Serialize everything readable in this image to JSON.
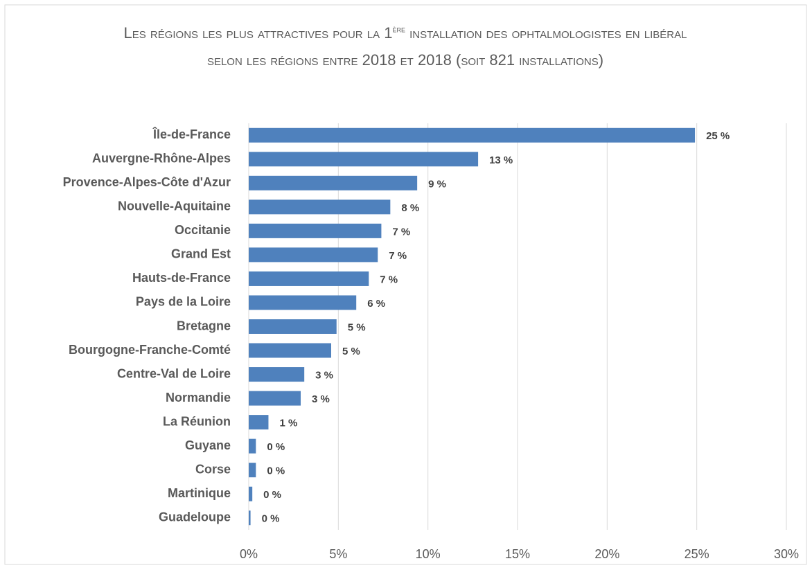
{
  "chart_data": {
    "type": "hbar",
    "title": [
      "Les régions les plus attractives pour la 1",
      "ère",
      " installation des ophtalmologistes en libéral selon les régions entre 2018 et 2018 (soit 821 installations)"
    ],
    "categories": [
      "Île-de-France",
      "Auvergne-Rhône-Alpes",
      "Provence-Alpes-Côte d'Azur",
      "Nouvelle-Aquitaine",
      "Occitanie",
      "Grand Est",
      "Hauts-de-France",
      "Pays de la Loire",
      "Bretagne",
      "Bourgogne-Franche-Comté",
      "Centre-Val de Loire",
      "Normandie",
      "La Réunion",
      "Guyane",
      "Corse",
      "Martinique",
      "Guadeloupe"
    ],
    "values": [
      24.9,
      12.8,
      9.4,
      7.9,
      7.4,
      7.2,
      6.7,
      6.0,
      4.9,
      4.6,
      3.1,
      2.9,
      1.1,
      0.4,
      0.4,
      0.2,
      0.1
    ],
    "value_labels": [
      "25 %",
      "13 %",
      "9 %",
      "8 %",
      "7 %",
      "7 %",
      "7 %",
      "6 %",
      "5 %",
      "5 %",
      "3 %",
      "3 %",
      "1 %",
      "0 %",
      "0 %",
      "0 %",
      "0 %"
    ],
    "color": "#4f81bd",
    "xlim": [
      0,
      30
    ],
    "xticks": [
      {
        "value": 0,
        "label": "0%"
      },
      {
        "value": 5,
        "label": "5%"
      },
      {
        "value": 10,
        "label": "10%"
      },
      {
        "value": 15,
        "label": "15%"
      },
      {
        "value": 20,
        "label": "20%"
      },
      {
        "value": 25,
        "label": "25%"
      },
      {
        "value": 30,
        "label": "30%"
      }
    ],
    "grid": true
  }
}
